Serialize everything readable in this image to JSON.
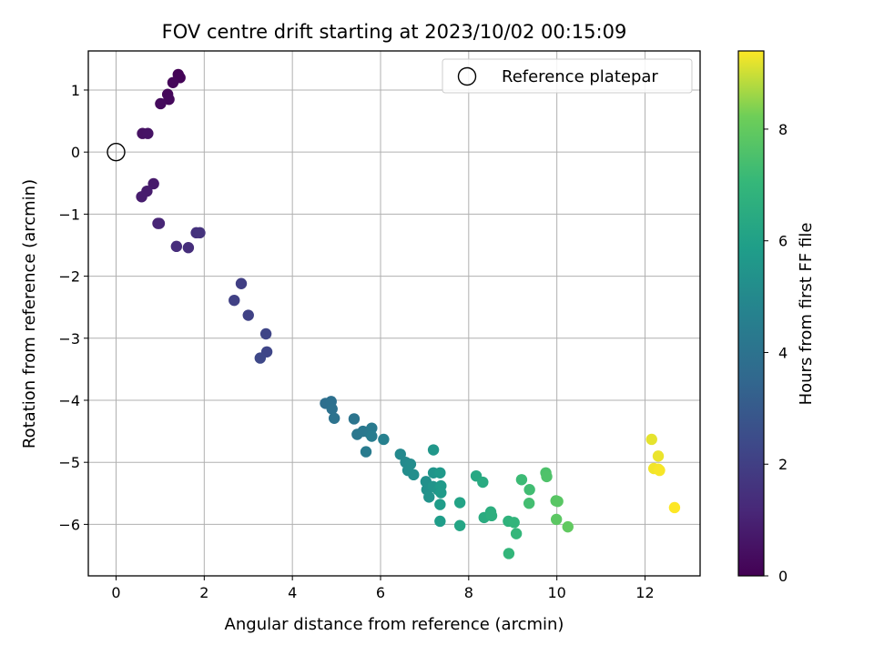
{
  "chart_data": {
    "type": "scatter",
    "title": "FOV centre drift starting at 2023/10/02 00:15:09",
    "xlabel": "Angular distance from reference (arcmin)",
    "ylabel": "Rotation from reference (arcmin)",
    "xlim": [
      -0.63,
      13.25
    ],
    "ylim": [
      -6.83,
      1.63
    ],
    "xticks": [
      "0",
      "2",
      "4",
      "6",
      "8",
      "10",
      "12"
    ],
    "yticks": [
      "1",
      "0",
      "−1",
      "−2",
      "−3",
      "−4",
      "−5",
      "−6"
    ],
    "grid": true,
    "legend": {
      "position": "top-right",
      "entries": [
        "Reference platepar"
      ]
    },
    "reference_point": {
      "x": 0,
      "y": 0,
      "marker": "open-circle"
    },
    "colorbar": {
      "label": "Hours from first FF file",
      "range": [
        0,
        9.4
      ],
      "ticks": [
        "0",
        "2",
        "4",
        "6",
        "8"
      ],
      "colormap": "viridis"
    },
    "series": [
      {
        "points": [
          {
            "x": 1.41,
            "y": 1.25,
            "c": 0.05
          },
          {
            "x": 1.45,
            "y": 1.2,
            "c": 0.1
          },
          {
            "x": 1.29,
            "y": 1.12,
            "c": 0.15
          },
          {
            "x": 1.17,
            "y": 0.93,
            "c": 0.2
          },
          {
            "x": 1.2,
            "y": 0.85,
            "c": 0.25
          },
          {
            "x": 1.01,
            "y": 0.78,
            "c": 0.3
          },
          {
            "x": 0.6,
            "y": 0.3,
            "c": 0.5
          },
          {
            "x": 0.72,
            "y": 0.3,
            "c": 0.55
          },
          {
            "x": 0.85,
            "y": -0.51,
            "c": 0.75
          },
          {
            "x": 0.7,
            "y": -0.63,
            "c": 0.8
          },
          {
            "x": 0.58,
            "y": -0.72,
            "c": 0.85
          },
          {
            "x": 0.95,
            "y": -1.15,
            "c": 1.05
          },
          {
            "x": 0.98,
            "y": -1.15,
            "c": 1.1
          },
          {
            "x": 1.37,
            "y": -1.52,
            "c": 1.35
          },
          {
            "x": 1.64,
            "y": -1.54,
            "c": 1.4
          },
          {
            "x": 1.82,
            "y": -1.3,
            "c": 1.5
          },
          {
            "x": 1.9,
            "y": -1.3,
            "c": 1.55
          },
          {
            "x": 2.84,
            "y": -2.12,
            "c": 2.0
          },
          {
            "x": 2.68,
            "y": -2.39,
            "c": 2.05
          },
          {
            "x": 3.0,
            "y": -2.63,
            "c": 2.1
          },
          {
            "x": 3.4,
            "y": -2.93,
            "c": 2.2
          },
          {
            "x": 3.42,
            "y": -3.22,
            "c": 2.25
          },
          {
            "x": 3.27,
            "y": -3.32,
            "c": 2.3
          },
          {
            "x": 4.75,
            "y": -4.05,
            "c": 3.85
          },
          {
            "x": 4.88,
            "y": -4.02,
            "c": 3.9
          },
          {
            "x": 4.9,
            "y": -4.14,
            "c": 3.95
          },
          {
            "x": 4.95,
            "y": -4.29,
            "c": 4.0
          },
          {
            "x": 5.4,
            "y": -4.3,
            "c": 4.1
          },
          {
            "x": 5.47,
            "y": -4.55,
            "c": 4.2
          },
          {
            "x": 5.6,
            "y": -4.5,
            "c": 4.25
          },
          {
            "x": 5.75,
            "y": -4.53,
            "c": 4.3
          },
          {
            "x": 5.8,
            "y": -4.45,
            "c": 4.35
          },
          {
            "x": 5.67,
            "y": -4.83,
            "c": 4.4
          },
          {
            "x": 5.8,
            "y": -4.58,
            "c": 4.45
          },
          {
            "x": 6.07,
            "y": -4.63,
            "c": 4.6
          },
          {
            "x": 6.45,
            "y": -4.87,
            "c": 5.0
          },
          {
            "x": 6.57,
            "y": -5.0,
            "c": 5.05
          },
          {
            "x": 6.68,
            "y": -5.03,
            "c": 5.1
          },
          {
            "x": 6.62,
            "y": -5.13,
            "c": 5.15
          },
          {
            "x": 6.75,
            "y": -5.2,
            "c": 5.2
          },
          {
            "x": 7.03,
            "y": -5.31,
            "c": 5.3
          },
          {
            "x": 7.05,
            "y": -5.44,
            "c": 5.35
          },
          {
            "x": 7.1,
            "y": -5.56,
            "c": 5.4
          },
          {
            "x": 7.19,
            "y": -5.39,
            "c": 5.45
          },
          {
            "x": 7.2,
            "y": -5.17,
            "c": 5.5
          },
          {
            "x": 7.3,
            "y": -5.44,
            "c": 5.55
          },
          {
            "x": 7.2,
            "y": -4.8,
            "c": 5.6
          },
          {
            "x": 7.35,
            "y": -5.17,
            "c": 5.65
          },
          {
            "x": 7.37,
            "y": -5.38,
            "c": 5.7
          },
          {
            "x": 7.37,
            "y": -5.49,
            "c": 5.75
          },
          {
            "x": 7.35,
            "y": -5.68,
            "c": 5.8
          },
          {
            "x": 7.35,
            "y": -5.95,
            "c": 5.85
          },
          {
            "x": 7.8,
            "y": -5.65,
            "c": 6.1
          },
          {
            "x": 7.8,
            "y": -6.02,
            "c": 6.2
          },
          {
            "x": 8.17,
            "y": -5.22,
            "c": 6.35
          },
          {
            "x": 8.32,
            "y": -5.32,
            "c": 6.45
          },
          {
            "x": 8.35,
            "y": -5.89,
            "c": 6.5
          },
          {
            "x": 8.5,
            "y": -5.8,
            "c": 6.6
          },
          {
            "x": 8.52,
            "y": -5.86,
            "c": 6.65
          },
          {
            "x": 8.9,
            "y": -5.95,
            "c": 6.8
          },
          {
            "x": 9.03,
            "y": -5.97,
            "c": 6.9
          },
          {
            "x": 8.91,
            "y": -6.47,
            "c": 6.95
          },
          {
            "x": 9.08,
            "y": -6.15,
            "c": 7.0
          },
          {
            "x": 9.2,
            "y": -5.28,
            "c": 7.2
          },
          {
            "x": 9.38,
            "y": -5.44,
            "c": 7.3
          },
          {
            "x": 9.37,
            "y": -5.66,
            "c": 7.35
          },
          {
            "x": 9.75,
            "y": -5.17,
            "c": 7.55
          },
          {
            "x": 9.77,
            "y": -5.23,
            "c": 7.6
          },
          {
            "x": 9.98,
            "y": -5.62,
            "c": 7.75
          },
          {
            "x": 10.02,
            "y": -5.63,
            "c": 7.8
          },
          {
            "x": 9.99,
            "y": -5.92,
            "c": 7.85
          },
          {
            "x": 10.25,
            "y": -6.04,
            "c": 7.95
          },
          {
            "x": 12.15,
            "y": -4.63,
            "c": 9.2
          },
          {
            "x": 12.3,
            "y": -4.9,
            "c": 9.25
          },
          {
            "x": 12.2,
            "y": -5.1,
            "c": 9.3
          },
          {
            "x": 12.3,
            "y": -5.11,
            "c": 9.32
          },
          {
            "x": 12.33,
            "y": -5.13,
            "c": 9.35
          },
          {
            "x": 12.67,
            "y": -5.73,
            "c": 9.4
          }
        ]
      }
    ]
  }
}
